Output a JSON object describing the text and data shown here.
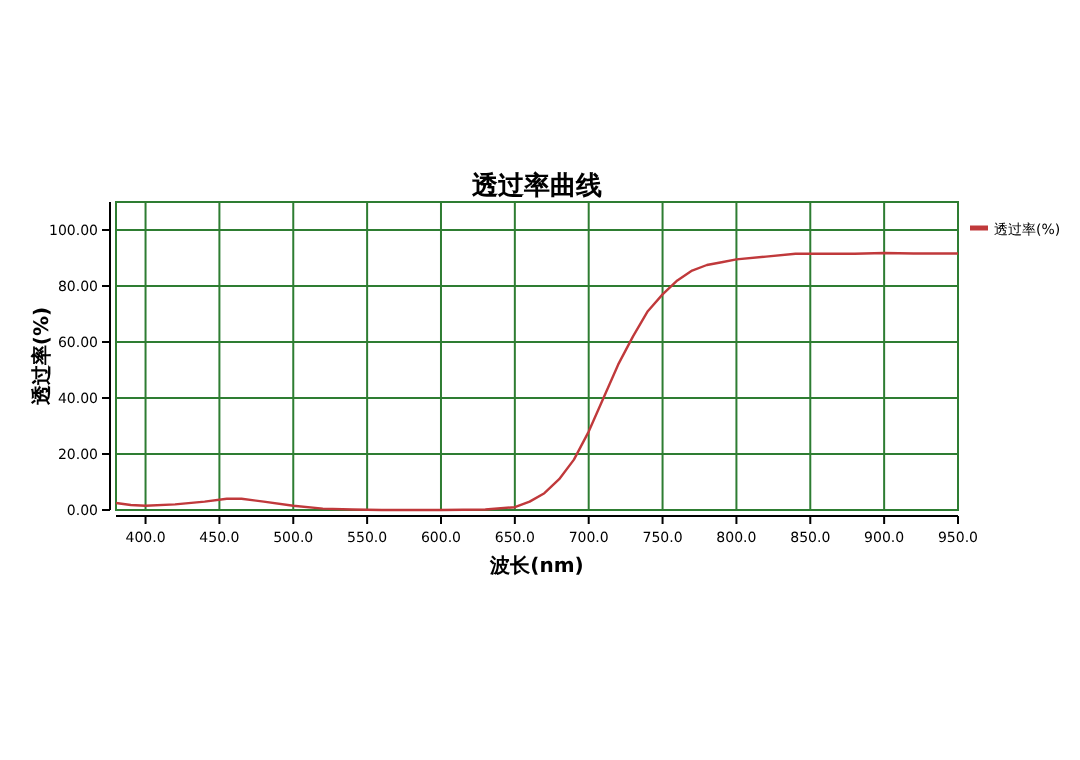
{
  "chart_data": {
    "type": "line",
    "title": "透过率曲线",
    "xlabel": "波长(nm)",
    "ylabel": "透过率(%)",
    "xlim": [
      380,
      950
    ],
    "xticks": [
      {
        "value": 400,
        "label": "400.0"
      },
      {
        "value": 450,
        "label": "450.0"
      },
      {
        "value": 500,
        "label": "500.0"
      },
      {
        "value": 550,
        "label": "550.0"
      },
      {
        "value": 600,
        "label": "600.0"
      },
      {
        "value": 650,
        "label": "650.0"
      },
      {
        "value": 700,
        "label": "700.0"
      },
      {
        "value": 750,
        "label": "750.0"
      },
      {
        "value": 800,
        "label": "800.0"
      },
      {
        "value": 850,
        "label": "850.0"
      },
      {
        "value": 900,
        "label": "900.0"
      },
      {
        "value": 950,
        "label": "950.0"
      }
    ],
    "ylim": [
      0,
      110
    ],
    "yticks": [
      {
        "value": 0,
        "label": "0.00"
      },
      {
        "value": 20,
        "label": "20.00"
      },
      {
        "value": 40,
        "label": "40.00"
      },
      {
        "value": 60,
        "label": "60.00"
      },
      {
        "value": 80,
        "label": "80.00"
      },
      {
        "value": 100,
        "label": "100.00"
      }
    ],
    "grid": true,
    "legend": "right",
    "marker": "none",
    "line_style": "solid",
    "series": [
      {
        "name": "透过率(%)",
        "color": "#c0393b",
        "x": [
          380,
          390,
          400,
          420,
          440,
          455,
          465,
          480,
          500,
          520,
          540,
          560,
          600,
          630,
          650,
          660,
          670,
          680,
          690,
          700,
          710,
          720,
          730,
          740,
          750,
          760,
          770,
          780,
          790,
          800,
          820,
          840,
          860,
          880,
          900,
          920,
          940,
          950
        ],
        "values": [
          2.5,
          1.8,
          1.5,
          2,
          3,
          4,
          4,
          3,
          1.5,
          0.5,
          0.2,
          0,
          0,
          0.2,
          1,
          3,
          6,
          11,
          18,
          28,
          40,
          52,
          62,
          71,
          77,
          82,
          85.5,
          87.5,
          88.5,
          89.5,
          90.5,
          91.5,
          91.5,
          91.5,
          91.8,
          91.6,
          91.6,
          91.6
        ]
      }
    ]
  }
}
